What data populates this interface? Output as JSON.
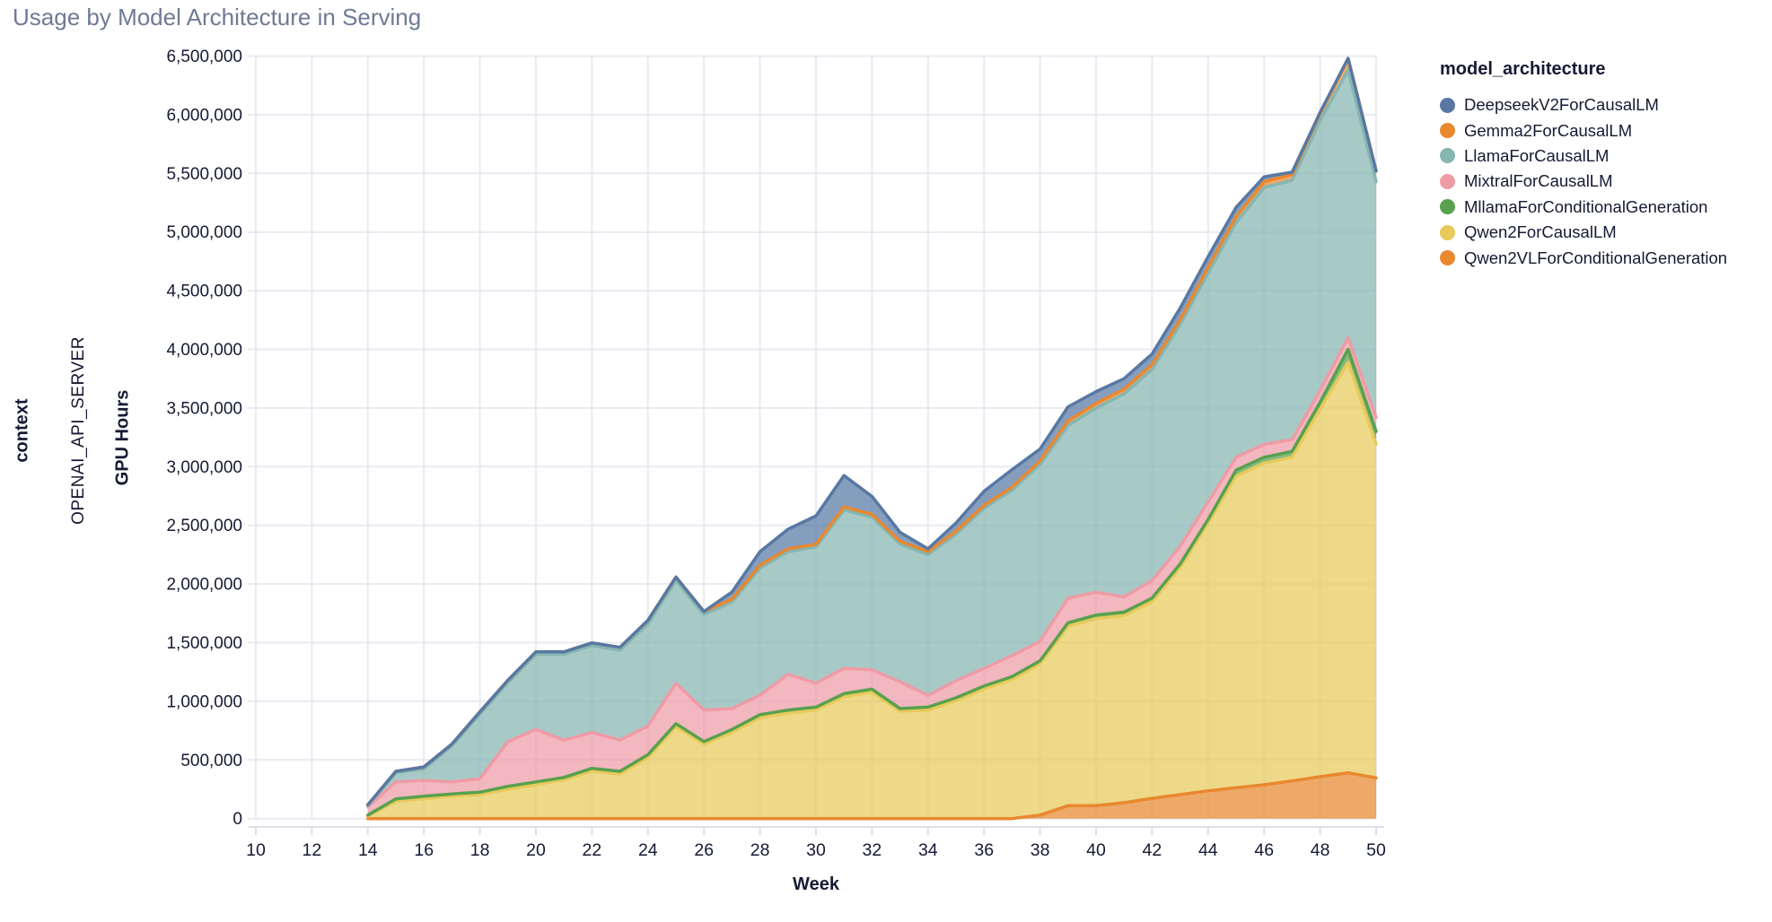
{
  "title": "Usage by Model Architecture in Serving",
  "facet": {
    "row_label": "context",
    "row_value": "OPENAI_API_SERVER"
  },
  "axes": {
    "x_title": "Week",
    "y_title": "GPU Hours"
  },
  "legend": {
    "title": "model_architecture",
    "items": [
      {
        "label": "DeepseekV2ForCausalLM",
        "color": "#5878a3"
      },
      {
        "label": "Gemma2ForCausalLM",
        "color": "#e9882f"
      },
      {
        "label": "LlamaForCausalLM",
        "color": "#85b6b2"
      },
      {
        "label": "MixtralForCausalLM",
        "color": "#ef9ba6"
      },
      {
        "label": "MllamaForConditionalGeneration",
        "color": "#58a14e"
      },
      {
        "label": "Qwen2ForCausalLM",
        "color": "#e7ca5a"
      },
      {
        "label": "Qwen2VLForConditionalGeneration",
        "color": "#e8882f"
      }
    ]
  },
  "chart_data": {
    "type": "area",
    "stacked": true,
    "title": "Usage by Model Architecture in Serving",
    "xlabel": "Week",
    "ylabel": "GPU Hours",
    "x_domain": [
      10,
      50
    ],
    "y_domain": [
      0,
      6500000
    ],
    "x_ticks": [
      10,
      12,
      14,
      16,
      18,
      20,
      22,
      24,
      26,
      28,
      30,
      32,
      34,
      36,
      38,
      40,
      42,
      44,
      46,
      48,
      50
    ],
    "y_tick_step": 500000,
    "grid": true,
    "legend_position": "right",
    "x": [
      14,
      15,
      16,
      17,
      18,
      19,
      20,
      21,
      22,
      23,
      24,
      25,
      26,
      27,
      28,
      29,
      30,
      31,
      32,
      33,
      34,
      35,
      36,
      37,
      38,
      39,
      40,
      41,
      42,
      43,
      44,
      45,
      46,
      47,
      48,
      49,
      50
    ],
    "series": [
      {
        "name": "Qwen2VLForConditionalGeneration",
        "color": "#e8882f",
        "values": [
          0,
          0,
          0,
          0,
          0,
          0,
          0,
          0,
          0,
          0,
          0,
          0,
          0,
          0,
          0,
          0,
          0,
          0,
          0,
          0,
          0,
          0,
          0,
          0,
          30000,
          110000,
          110000,
          135000,
          173000,
          204000,
          237000,
          263000,
          288000,
          321000,
          357000,
          390000,
          347000
        ]
      },
      {
        "name": "Qwen2ForCausalLM",
        "color": "#e7ca5a",
        "values": [
          20000,
          148000,
          170000,
          190000,
          205000,
          250000,
          290000,
          330000,
          405000,
          380000,
          520000,
          785000,
          635000,
          735000,
          860000,
          900000,
          925000,
          1040000,
          1078000,
          915000,
          925000,
          1005000,
          1105000,
          1185000,
          1290000,
          1530000,
          1595000,
          1595000,
          1677000,
          1936000,
          2283000,
          2657000,
          2742000,
          2759000,
          3133000,
          3500000,
          2843000
        ]
      },
      {
        "name": "MllamaForConditionalGeneration",
        "color": "#58a14e",
        "values": [
          10000,
          20000,
          20000,
          20000,
          20000,
          25000,
          23000,
          21000,
          23000,
          23000,
          25000,
          25000,
          22000,
          25000,
          26000,
          25000,
          25000,
          25000,
          25000,
          23000,
          25000,
          25000,
          25000,
          25000,
          25000,
          30000,
          30000,
          30000,
          30000,
          30000,
          30000,
          50000,
          50000,
          50000,
          60000,
          110000,
          110000
        ]
      },
      {
        "name": "MixtralForCausalLM",
        "color": "#ef9ba6",
        "values": [
          70000,
          145000,
          136000,
          103000,
          115000,
          382000,
          447000,
          319000,
          306000,
          267000,
          245000,
          344000,
          268000,
          178000,
          166000,
          305000,
          204000,
          216000,
          165000,
          229000,
          100000,
          145000,
          150000,
          180000,
          165000,
          210000,
          195000,
          130000,
          150000,
          150000,
          150000,
          110000,
          110000,
          100000,
          100000,
          100000,
          120000
        ]
      },
      {
        "name": "LlamaForCausalLM",
        "color": "#85b6b2",
        "values": [
          10000,
          77000,
          99000,
          307000,
          550000,
          503000,
          640000,
          730000,
          741000,
          765000,
          870000,
          876000,
          815000,
          907000,
          1083000,
          1045000,
          1161000,
          1349000,
          1302000,
          1173000,
          1200000,
          1250000,
          1365000,
          1410000,
          1510000,
          1470000,
          1570000,
          1730000,
          1800000,
          1890000,
          1950000,
          2000000,
          2190000,
          2210000,
          2300000,
          2280000,
          2010000
        ]
      },
      {
        "name": "Gemma2ForCausalLM",
        "color": "#e9882f",
        "values": [
          8000,
          13000,
          15000,
          15000,
          20000,
          20000,
          21000,
          21000,
          23000,
          25000,
          30000,
          29000,
          25000,
          25000,
          25000,
          25000,
          23000,
          27000,
          23000,
          24000,
          25000,
          25000,
          25000,
          25000,
          30000,
          40000,
          40000,
          40000,
          40000,
          40000,
          50000,
          50000,
          50000,
          50000,
          60000,
          100000,
          90000
        ]
      },
      {
        "name": "DeepseekV2ForCausalLM",
        "color": "#5878a3",
        "values": [
          0,
          0,
          0,
          0,
          0,
          0,
          0,
          0,
          0,
          0,
          0,
          0,
          0,
          61000,
          115000,
          166000,
          242000,
          267000,
          153000,
          76000,
          25000,
          70000,
          120000,
          150000,
          100000,
          120000,
          100000,
          90000,
          90000,
          100000,
          90000,
          80000,
          40000,
          20000,
          10000,
          0,
          0
        ]
      }
    ]
  },
  "style": {
    "grid_color": "#e9eaf2",
    "axis_color": "#dcdfe8",
    "tick_label_color": "#161a33",
    "fill_opacity": 0.72
  }
}
